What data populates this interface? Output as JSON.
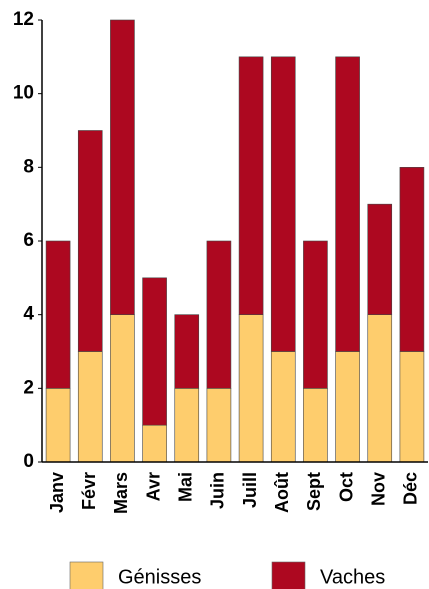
{
  "chart_data": {
    "type": "stacked_bar",
    "categories": [
      "Janv",
      "Févr",
      "Mars",
      "Avr",
      "Mai",
      "Juin",
      "Juill",
      "Août",
      "Sept",
      "Oct",
      "Nov",
      "Déc"
    ],
    "series": [
      {
        "name": "Génisses",
        "color": "#fecd6d",
        "values": [
          2,
          3,
          4,
          1,
          2,
          2,
          4,
          3,
          2,
          3,
          4,
          3
        ]
      },
      {
        "name": "Vaches",
        "color": "#ad0820",
        "values": [
          4,
          6,
          8,
          4,
          2,
          4,
          7,
          8,
          4,
          8,
          3,
          5
        ]
      }
    ],
    "ylim": [
      0,
      12
    ],
    "yticks": [
      0,
      2,
      4,
      6,
      8,
      10,
      12
    ],
    "legend": "bottom"
  }
}
